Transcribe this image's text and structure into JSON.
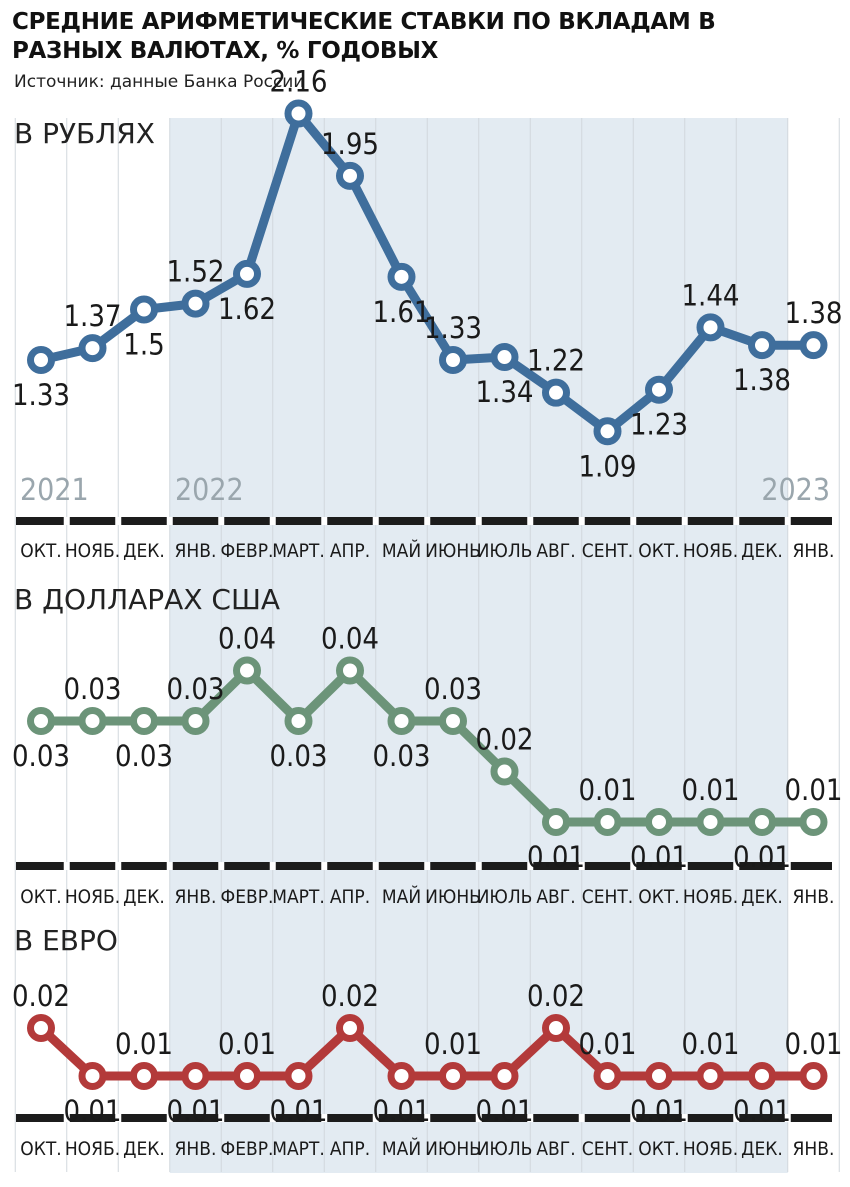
{
  "title": "СРЕДНИЕ АРИФМЕТИЧЕСКИЕ СТАВКИ ПО ВКЛАДАМ В РАЗНЫХ ВАЛЮТАХ, % ГОДОВЫХ",
  "source": "Источник: данные Банка России",
  "colors": {
    "rub": "#3f6e9c",
    "usd": "#6c9479",
    "eur": "#b33a3a",
    "shade": "#e3ebf2"
  },
  "years": [
    "2021",
    "2022",
    "2023"
  ],
  "chart_data": [
    {
      "type": "line",
      "title": "В РУБЛЯХ",
      "categories": [
        "ОКТ.",
        "НОЯБ.",
        "ДЕК.",
        "ЯНВ.",
        "ФЕВР.",
        "МАРТ.",
        "АПР.",
        "МАЙ",
        "ИЮНЬ",
        "ИЮЛЬ",
        "АВГ.",
        "СЕНТ.",
        "ОКТ.",
        "НОЯБ.",
        "ДЕК.",
        "ЯНВ."
      ],
      "values": [
        1.33,
        1.37,
        1.5,
        1.52,
        1.62,
        2.16,
        1.95,
        1.61,
        1.33,
        1.34,
        1.22,
        1.09,
        1.23,
        1.44,
        1.38,
        1.38
      ],
      "labels": [
        "1.33",
        "1.37",
        "1.5",
        "1.52",
        "1.62",
        "2.16",
        "1.95",
        "1.61",
        "1.33",
        "1.34",
        "1.22",
        "1.09",
        "1.23",
        "1.44",
        "1.38",
        "1.38"
      ],
      "shaded_range": [
        "ЯНВ.",
        "ДЕК."
      ]
    },
    {
      "type": "line",
      "title": "В ДОЛЛАРАХ США",
      "categories": [
        "ОКТ.",
        "НОЯБ.",
        "ДЕК.",
        "ЯНВ.",
        "ФЕВР.",
        "МАРТ.",
        "АПР.",
        "МАЙ",
        "ИЮНЬ",
        "ИЮЛЬ",
        "АВГ.",
        "СЕНТ.",
        "ОКТ.",
        "НОЯБ.",
        "ДЕК.",
        "ЯНВ."
      ],
      "values": [
        0.03,
        0.03,
        0.03,
        0.03,
        0.04,
        0.03,
        0.04,
        0.03,
        0.03,
        0.02,
        0.01,
        0.01,
        0.01,
        0.01,
        0.01,
        0.01
      ],
      "labels": [
        "0.03",
        "0.03",
        "0.03",
        "0.03",
        "0.04",
        "0.03",
        "0.04",
        "0.03",
        "0.03",
        "0.02",
        "0.01",
        "0.01",
        "0.01",
        "0.01",
        "0.01",
        "0.01"
      ]
    },
    {
      "type": "line",
      "title": "В ЕВРО",
      "categories": [
        "ОКТ.",
        "НОЯБ.",
        "ДЕК.",
        "ЯНВ.",
        "ФЕВР.",
        "МАРТ.",
        "АПР.",
        "МАЙ",
        "ИЮНЬ",
        "ИЮЛЬ",
        "АВГ.",
        "СЕНТ.",
        "ОКТ.",
        "НОЯБ.",
        "ДЕК.",
        "ЯНВ."
      ],
      "values": [
        0.02,
        0.01,
        0.01,
        0.01,
        0.01,
        0.01,
        0.02,
        0.01,
        0.01,
        0.01,
        0.02,
        0.01,
        0.01,
        0.01,
        0.01,
        0.01
      ],
      "labels": [
        "0.02",
        "0.01",
        "0.01",
        "0.01",
        "0.01",
        "0.01",
        "0.02",
        "0.01",
        "0.01",
        "0.01",
        "0.02",
        "0.01",
        "0.01",
        "0.01",
        "0.01",
        "0.01"
      ]
    }
  ]
}
